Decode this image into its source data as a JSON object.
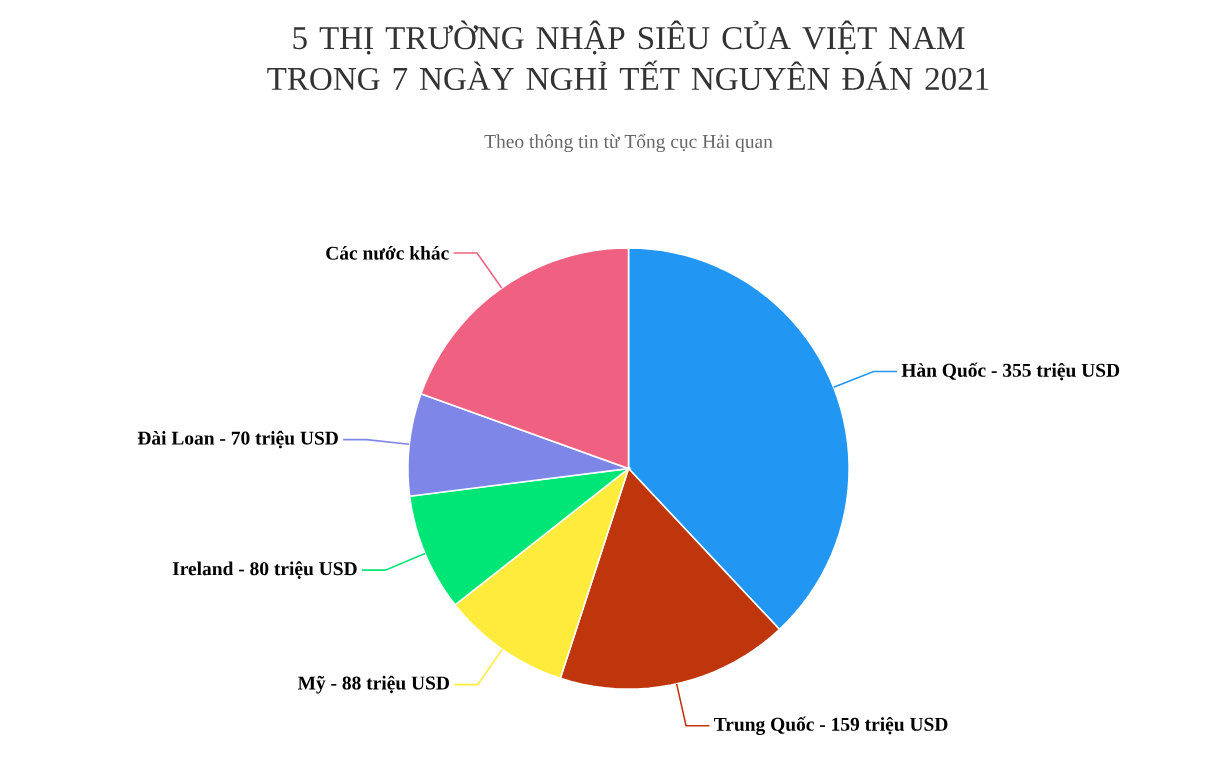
{
  "chart_data": {
    "type": "pie",
    "title": "5 THỊ TRƯỜNG NHẬP SIÊU CỦA VIỆT NAM TRONG 7 NGÀY NGHỈ TẾT NGUYÊN ĐÁN 2021",
    "subtitle": "Theo thông tin từ Tổng cục Hải quan",
    "categories": [
      "Hàn Quốc - 355 triệu USD",
      "Trung Quốc - 159 triệu USD",
      "Mỹ - 88 triệu USD",
      "Ireland - 80 triệu USD",
      "Đài Loan - 70 triệu USD",
      "Các nước khác"
    ],
    "values": [
      38.0,
      17.0,
      9.4,
      8.6,
      7.5,
      19.5
    ],
    "colors": [
      "#2196f3",
      "#bf360c",
      "#ffeb3b",
      "#00e676",
      "#7e87e8",
      "#f06080"
    ]
  }
}
